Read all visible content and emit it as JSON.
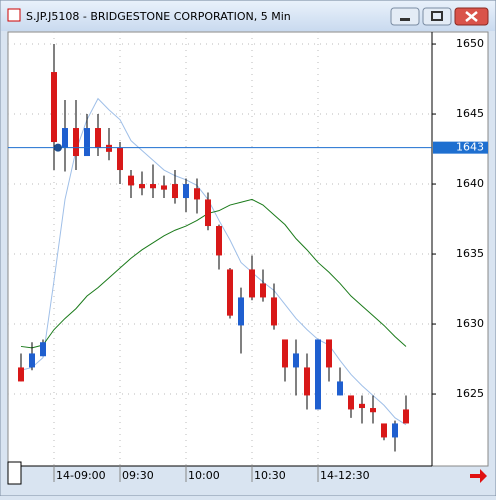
{
  "chart_data": {
    "type": "candlestick",
    "title": "S.JP.J5108 - BRIDGESTONE CORPORATION, 5 Min",
    "categories": [
      null,
      null,
      null,
      "14-09:00",
      null,
      null,
      null,
      null,
      null,
      "09:30",
      null,
      null,
      null,
      null,
      null,
      "10:00",
      null,
      null,
      null,
      null,
      null,
      "10:30",
      null,
      null,
      null,
      null,
      null,
      "14-12:30",
      null,
      null,
      null,
      null,
      null,
      null,
      null,
      null
    ],
    "open": [
      1626.9,
      1626.9,
      1627.7,
      1648.0,
      1642.6,
      1644.0,
      1642.0,
      1644.0,
      1642.8,
      1642.6,
      1640.6,
      1640.0,
      1640.0,
      1639.9,
      1640.0,
      1639.0,
      1639.7,
      1638.9,
      1637.0,
      1633.9,
      1629.9,
      1633.9,
      1632.9,
      1631.9,
      1628.9,
      1626.9,
      1626.9,
      1623.9,
      1628.9,
      1624.9,
      1624.9,
      1624.3,
      1624.0,
      1622.9,
      1621.9,
      1623.9
    ],
    "high": [
      1627.9,
      1628.7,
      1628.9,
      1650.0,
      1646.0,
      1646.0,
      1645.0,
      1645.0,
      1644.0,
      1643.0,
      1641.0,
      1640.9,
      1641.4,
      1640.6,
      1641.0,
      1640.4,
      1640.4,
      1639.4,
      1637.1,
      1634.0,
      1632.6,
      1634.9,
      1633.9,
      1632.9,
      1628.9,
      1628.9,
      1627.9,
      1628.9,
      1628.9,
      1626.9,
      1624.9,
      1624.9,
      1624.9,
      1622.9,
      1623.1,
      1624.9
    ],
    "low": [
      1625.9,
      1626.7,
      1627.7,
      1641.0,
      1640.9,
      1641.0,
      1642.0,
      1642.0,
      1641.7,
      1640.0,
      1639.0,
      1639.2,
      1639.0,
      1639.0,
      1638.6,
      1638.0,
      1637.9,
      1636.7,
      1633.9,
      1630.4,
      1627.9,
      1631.7,
      1631.6,
      1629.6,
      1625.9,
      1624.9,
      1623.9,
      1623.9,
      1625.9,
      1624.9,
      1623.3,
      1622.9,
      1622.9,
      1621.7,
      1620.9,
      1622.9
    ],
    "close": [
      1625.9,
      1627.9,
      1628.7,
      1643.0,
      1644.0,
      1642.0,
      1644.0,
      1642.6,
      1642.3,
      1641.0,
      1639.9,
      1639.7,
      1639.7,
      1639.6,
      1639.0,
      1640.0,
      1638.9,
      1637.0,
      1634.9,
      1630.6,
      1631.9,
      1631.9,
      1631.9,
      1629.9,
      1626.9,
      1627.9,
      1624.9,
      1628.9,
      1626.9,
      1625.9,
      1623.9,
      1624.0,
      1623.7,
      1621.9,
      1622.9,
      1622.9
    ],
    "up_color": "#1f5fcf",
    "down_color": "#d81818",
    "lines": [
      {
        "color": "#9fbfe8",
        "values": [
          1626.7,
          1626.9,
          1627.6,
          1633.1,
          1638.9,
          1642.4,
          1644.6,
          1646.1,
          1645.3,
          1644.6,
          1643.1,
          1642.4,
          1641.7,
          1641.0,
          1640.6,
          1640.3,
          1639.9,
          1638.9,
          1637.4,
          1636.0,
          1634.4,
          1633.7,
          1633.0,
          1632.4,
          1631.4,
          1630.4,
          1629.6,
          1628.9,
          1628.5,
          1627.4,
          1626.4,
          1625.6,
          1624.9,
          1624.2,
          1623.3,
          1622.8
        ]
      },
      {
        "color": "#1a7a1a",
        "values": [
          1628.4,
          1628.3,
          1628.5,
          1629.6,
          1630.4,
          1631.1,
          1632.0,
          1632.6,
          1633.3,
          1634.0,
          1634.7,
          1635.3,
          1635.8,
          1636.3,
          1636.7,
          1637.0,
          1637.4,
          1637.9,
          1638.1,
          1638.5,
          1638.7,
          1638.9,
          1638.5,
          1637.8,
          1637.1,
          1636.1,
          1635.3,
          1634.4,
          1633.7,
          1632.9,
          1632.0,
          1631.3,
          1630.6,
          1629.9,
          1629.1,
          1628.4
        ]
      }
    ],
    "level": {
      "value": 1642.6,
      "label": "1643"
    },
    "ylim": [
      1619.86,
      1650.86
    ],
    "yticks": [
      1625,
      1630,
      1635,
      1640,
      1645,
      1650
    ],
    "grid": true
  }
}
